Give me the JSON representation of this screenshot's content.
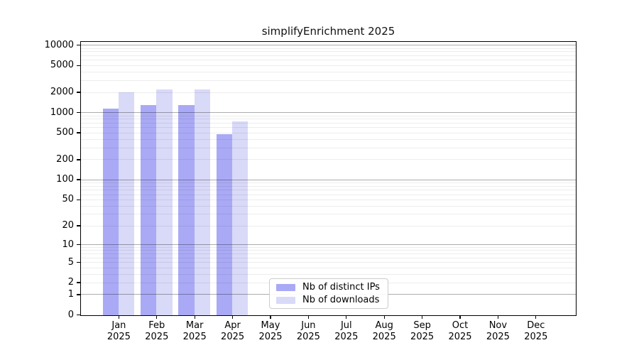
{
  "chart_data": {
    "type": "bar",
    "title": "simplifyEnrichment 2025",
    "year": "2025",
    "categories": [
      "Jan",
      "Feb",
      "Mar",
      "Apr",
      "May",
      "Jun",
      "Jul",
      "Aug",
      "Sep",
      "Oct",
      "Nov",
      "Dec"
    ],
    "series": [
      {
        "name": "Nb of distinct IPs",
        "color": "#a9a9f5",
        "values": [
          1150,
          1310,
          1310,
          480,
          0,
          0,
          0,
          0,
          0,
          0,
          0,
          0
        ]
      },
      {
        "name": "Nb of downloads",
        "color": "#d9d9f8",
        "values": [
          2040,
          2260,
          2240,
          755,
          0,
          0,
          0,
          0,
          0,
          0,
          0,
          0
        ]
      }
    ],
    "y_ticks": [
      10000,
      5000,
      2000,
      1000,
      500,
      200,
      100,
      50,
      20,
      10,
      5,
      2,
      1,
      0
    ],
    "y_scale": "log10(1+x)",
    "ylim": [
      0,
      10000
    ],
    "grid": true,
    "grid_major_color": "#b3b3b3",
    "grid_minor_color": "#ececec",
    "legend_position": "lower center"
  }
}
